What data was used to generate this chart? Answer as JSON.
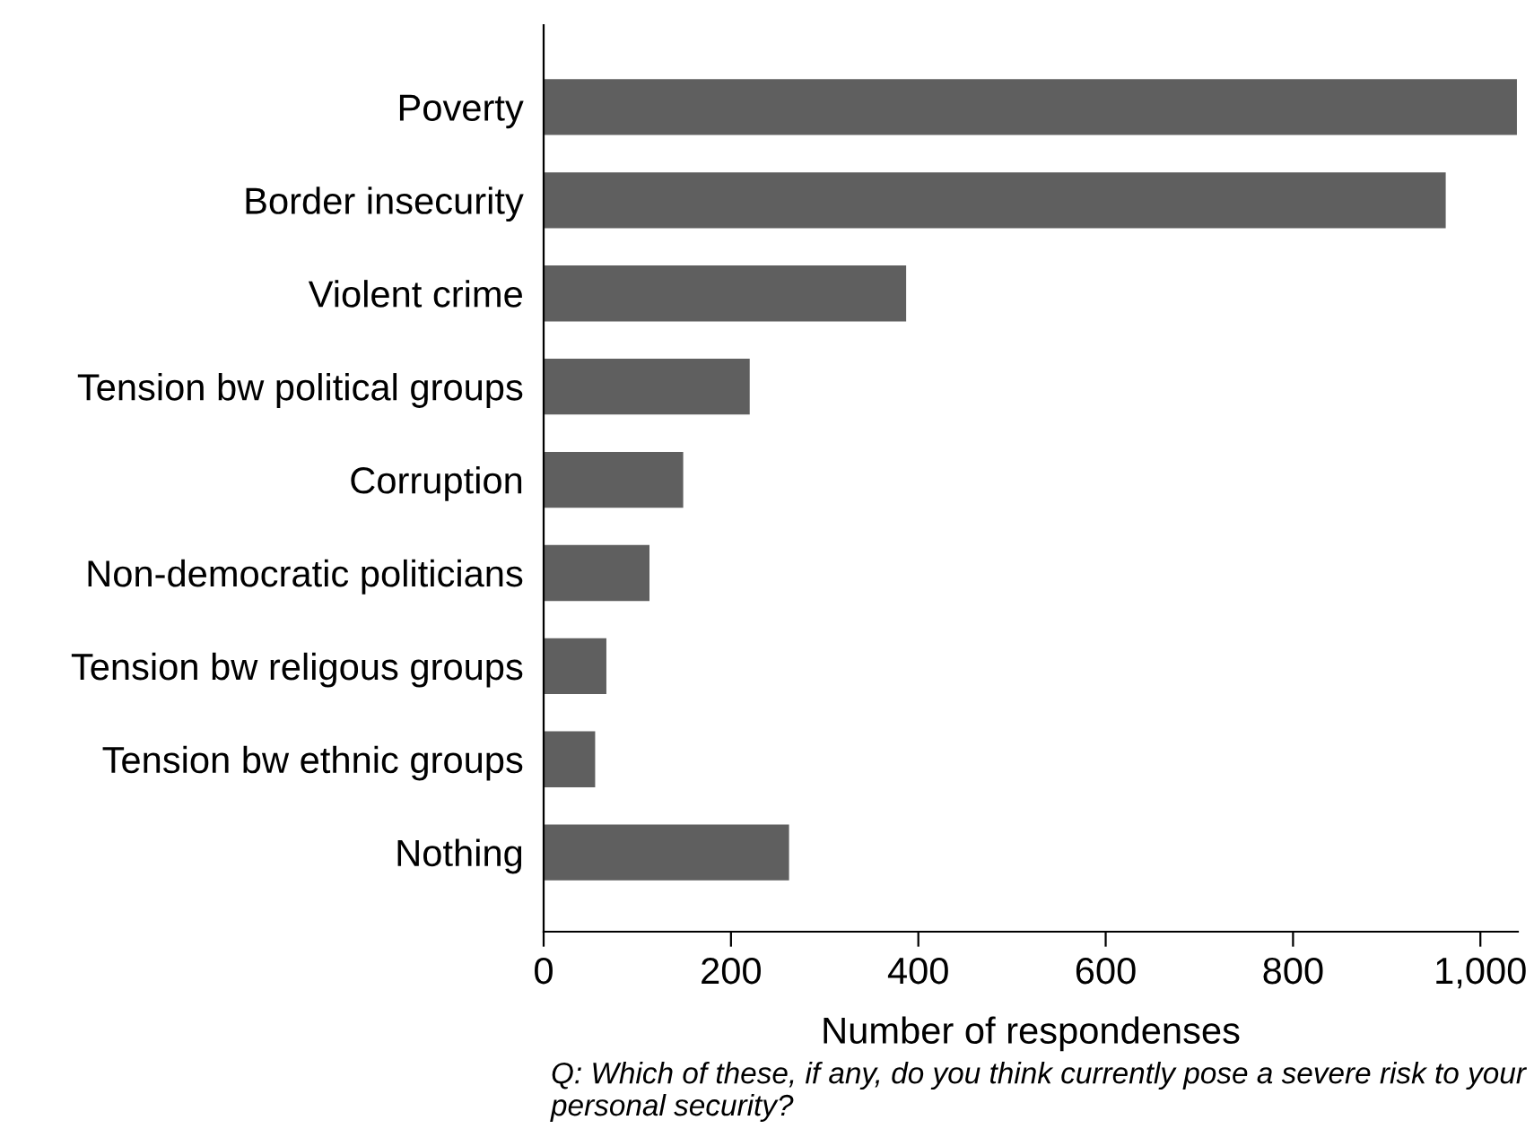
{
  "chart_data": {
    "type": "bar",
    "orientation": "horizontal",
    "categories": [
      "Poverty",
      "Border insecurity",
      "Violent crime",
      "Tension bw political groups",
      "Corruption",
      "Non-democratic politicians",
      "Tension bw religous groups",
      "Tension bw ethnic groups",
      "Nothing"
    ],
    "values": [
      1039,
      963,
      387,
      220,
      149,
      113,
      67,
      55,
      262
    ],
    "color": "#5f5f5f",
    "xlim": [
      0,
      1040
    ],
    "xticks": [
      0,
      200,
      400,
      600,
      800,
      {
        "value": 1000,
        "label": "1,000"
      }
    ],
    "xlabel": "Number of respondenses",
    "grid": false,
    "legend": false,
    "annotations": [
      "Q: Which of these, if any, do you think currently pose a severe risk to your personal security?"
    ]
  }
}
